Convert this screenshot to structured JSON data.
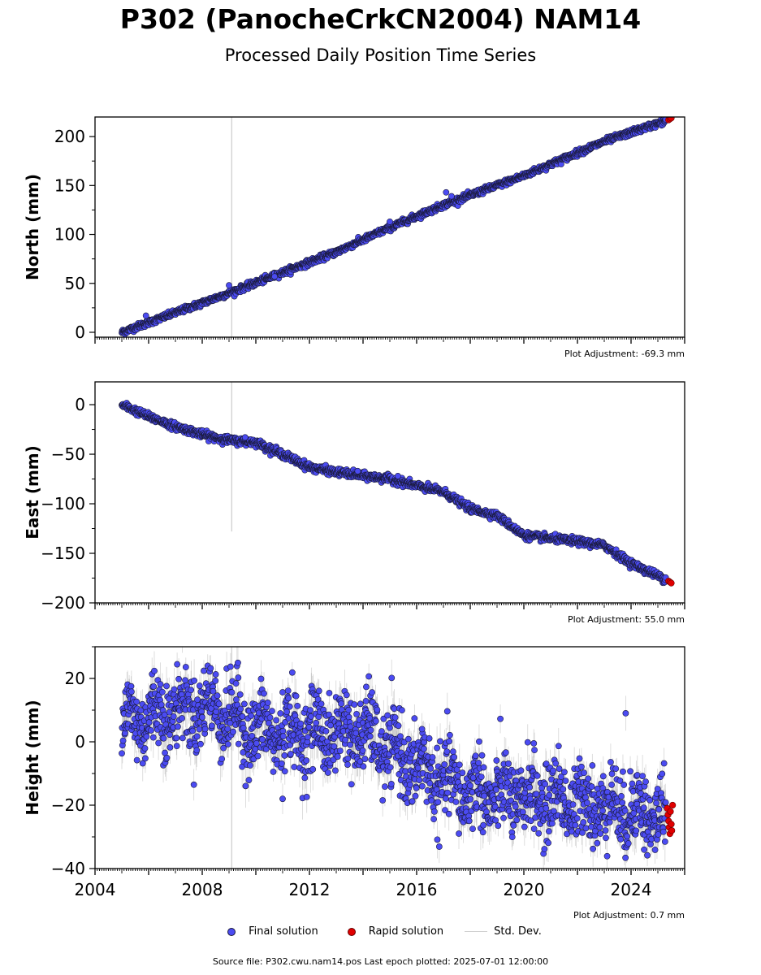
{
  "title": "P302 (PanocheCrkCN2004) NAM14",
  "subtitle": "Processed Daily Position Time Series",
  "footer": "Source file: P302.cwu.nam14.pos  Last epoch plotted: 2025-07-01 12:00:00",
  "legend": {
    "final": "Final solution",
    "rapid": "Rapid solution",
    "stddev": "Std. Dev."
  },
  "colors": {
    "final": "#4b4bf2",
    "rapid": "#e00000",
    "stddev": "#cfcfcf",
    "marker_edge": "#1a1a3a"
  },
  "chart_data": [
    {
      "type": "scatter",
      "ylabel": "North (mm)",
      "adjustment": "Plot Adjustment: -69.3 mm",
      "xlim": [
        2004,
        2026
      ],
      "ylim": [
        -5,
        220
      ],
      "yticks": [
        0,
        50,
        100,
        150,
        200
      ],
      "xticks": [
        2004,
        2008,
        2012,
        2016,
        2020,
        2024
      ],
      "show_xtick_labels": false,
      "vertical_line_x": 2009.1,
      "trend": [
        [
          2005.0,
          0
        ],
        [
          2009.0,
          40
        ],
        [
          2013.0,
          82
        ],
        [
          2015.0,
          107
        ],
        [
          2017.0,
          130
        ],
        [
          2020.0,
          160
        ],
        [
          2023.0,
          195
        ],
        [
          2025.5,
          218
        ]
      ],
      "noise": 1.5,
      "err": 0,
      "outliers": [
        [
          2005.9,
          17
        ],
        [
          2009.0,
          48
        ],
        [
          2010.7,
          57
        ],
        [
          2015.0,
          113
        ],
        [
          2017.1,
          143
        ],
        [
          2017.3,
          139
        ]
      ],
      "rapid": [
        [
          2025.4,
          217
        ],
        [
          2025.45,
          218
        ],
        [
          2025.5,
          219
        ]
      ]
    },
    {
      "type": "scatter",
      "ylabel": "East (mm)",
      "adjustment": "Plot Adjustment: 55.0 mm",
      "xlim": [
        2004,
        2026
      ],
      "ylim": [
        -200,
        23
      ],
      "yticks": [
        0,
        -50,
        -100,
        -150,
        -200
      ],
      "xticks": [
        2004,
        2008,
        2012,
        2016,
        2020,
        2024
      ],
      "show_xtick_labels": false,
      "vertical_line_x": 2009.1,
      "vertical_line_range": [
        -128,
        23
      ],
      "trend": [
        [
          2005.0,
          0
        ],
        [
          2006.0,
          -12
        ],
        [
          2007.0,
          -22
        ],
        [
          2008.0,
          -30
        ],
        [
          2009.0,
          -36
        ],
        [
          2010.0,
          -38
        ],
        [
          2011.0,
          -50
        ],
        [
          2012.0,
          -63
        ],
        [
          2013.0,
          -68
        ],
        [
          2014.0,
          -72
        ],
        [
          2015.0,
          -75
        ],
        [
          2016.0,
          -82
        ],
        [
          2017.0,
          -88
        ],
        [
          2018.0,
          -105
        ],
        [
          2019.0,
          -112
        ],
        [
          2020.0,
          -132
        ],
        [
          2021.0,
          -135
        ],
        [
          2022.0,
          -138
        ],
        [
          2023.0,
          -142
        ],
        [
          2024.0,
          -160
        ],
        [
          2025.5,
          -179
        ]
      ],
      "noise": 1.8,
      "err": 0,
      "outliers": [
        [
          2009.6,
          -33
        ],
        [
          2013.8,
          -67
        ],
        [
          2015.3,
          -72
        ]
      ],
      "rapid": [
        [
          2025.4,
          -178
        ],
        [
          2025.45,
          -179
        ],
        [
          2025.5,
          -180
        ]
      ]
    },
    {
      "type": "scatter",
      "ylabel": "Height (mm)",
      "adjustment": "Plot Adjustment: 0.7 mm",
      "xlim": [
        2004,
        2026
      ],
      "ylim": [
        -40,
        30
      ],
      "yticks": [
        20,
        0,
        -20,
        -40
      ],
      "xticks": [
        2004,
        2008,
        2012,
        2016,
        2020,
        2024
      ],
      "show_xtick_labels": true,
      "vertical_line_x": 2009.1,
      "trend": [
        [
          2005.0,
          6
        ],
        [
          2007.0,
          10
        ],
        [
          2008.5,
          11
        ],
        [
          2010.0,
          3
        ],
        [
          2012.0,
          3
        ],
        [
          2014.0,
          3
        ],
        [
          2016.0,
          -8
        ],
        [
          2017.5,
          -15
        ],
        [
          2019.0,
          -17
        ],
        [
          2021.0,
          -18
        ],
        [
          2023.0,
          -20
        ],
        [
          2025.5,
          -24
        ]
      ],
      "noise": 6,
      "err": 5,
      "outliers": [
        [
          2023.8,
          9
        ],
        [
          2016.2,
          4
        ],
        [
          2011.0,
          -18
        ]
      ],
      "rapid": [
        [
          2025.35,
          -21
        ],
        [
          2025.38,
          -23
        ],
        [
          2025.4,
          -25
        ],
        [
          2025.42,
          -27
        ],
        [
          2025.45,
          -29
        ],
        [
          2025.47,
          -22
        ],
        [
          2025.5,
          -26
        ],
        [
          2025.52,
          -28
        ],
        [
          2025.55,
          -20
        ]
      ]
    }
  ]
}
